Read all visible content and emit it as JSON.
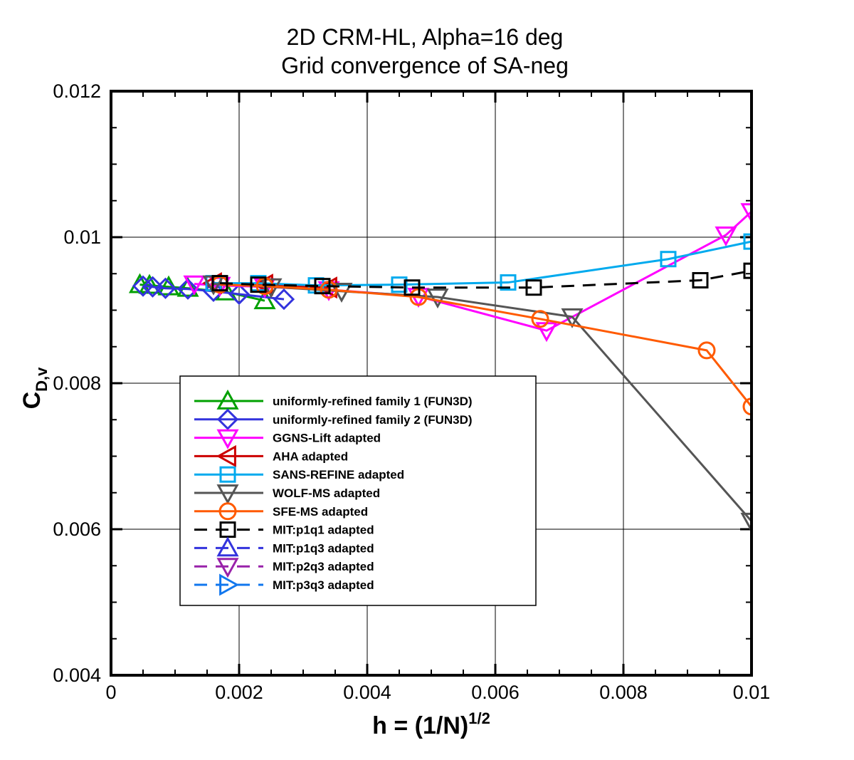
{
  "chart_data": {
    "type": "line",
    "title": [
      "2D CRM-HL, Alpha=16 deg",
      "Grid convergence of SA-neg"
    ],
    "xlabel": {
      "base": "h = (1/N)",
      "sup": "1/2"
    },
    "ylabel": {
      "base": "C",
      "sub": "D,v"
    },
    "xlim": [
      0,
      0.01
    ],
    "ylim": [
      0.004,
      0.012
    ],
    "xticks": [
      "0",
      "0.002",
      "0.004",
      "0.006",
      "0.008",
      "0.01"
    ],
    "yticks": [
      "0.004",
      "0.006",
      "0.008",
      "0.01",
      "0.012"
    ],
    "grid": true,
    "legend_position": "lower-left",
    "series": [
      {
        "name": "uniformly-refined family 1 (FUN3D)",
        "color": "#00a000",
        "marker": "triangle-up",
        "dash": false,
        "x": [
          0.00045,
          0.0006,
          0.0009,
          0.0012,
          0.0018,
          0.0024
        ],
        "y": [
          0.00935,
          0.00934,
          0.00932,
          0.0093,
          0.00925,
          0.00913
        ]
      },
      {
        "name": "uniformly-refined family 2 (FUN3D)",
        "color": "#3333dd",
        "marker": "diamond",
        "dash": false,
        "x": [
          0.0005,
          0.00065,
          0.00085,
          0.0012,
          0.0016,
          0.002,
          0.0027
        ],
        "y": [
          0.00933,
          0.00932,
          0.0093,
          0.00929,
          0.00926,
          0.00922,
          0.00915
        ]
      },
      {
        "name": "GGNS-Lift adapted",
        "color": "#ff00ff",
        "marker": "triangle-down",
        "dash": false,
        "x": [
          0.0013,
          0.0017,
          0.0024,
          0.0034,
          0.0048,
          0.0068,
          0.0096,
          0.01
        ],
        "y": [
          0.00936,
          0.00934,
          0.00932,
          0.00928,
          0.00919,
          0.00872,
          0.01003,
          0.01035
        ]
      },
      {
        "name": "AHA adapted",
        "color": "#cc0000",
        "marker": "triangle-left",
        "dash": false,
        "x": [
          0.0016,
          0.0024,
          0.0034
        ],
        "y": [
          0.00937,
          0.00935,
          0.00931
        ]
      },
      {
        "name": "SANS-REFINE adapted",
        "color": "#00aaee",
        "marker": "square",
        "dash": false,
        "x": [
          0.0016,
          0.0023,
          0.0032,
          0.0045,
          0.0062,
          0.0087,
          0.01
        ],
        "y": [
          0.00937,
          0.00937,
          0.00934,
          0.00935,
          0.00938,
          0.0097,
          0.00994
        ]
      },
      {
        "name": "WOLF-MS adapted",
        "color": "#555555",
        "marker": "triangle-down",
        "dash": false,
        "x": [
          0.0016,
          0.0025,
          0.0036,
          0.0051,
          0.0072,
          0.01
        ],
        "y": [
          0.00936,
          0.00932,
          0.00926,
          0.00918,
          0.00891,
          0.00611
        ]
      },
      {
        "name": "SFE-MS adapted",
        "color": "#ff5a00",
        "marker": "circle",
        "dash": false,
        "x": [
          0.0017,
          0.0024,
          0.0034,
          0.0048,
          0.0067,
          0.0093,
          0.01
        ],
        "y": [
          0.00935,
          0.00933,
          0.00928,
          0.00918,
          0.00888,
          0.00845,
          0.00768
        ]
      },
      {
        "name": "MIT:p1q1 adapted",
        "color": "#000000",
        "marker": "square",
        "dash": true,
        "x": [
          0.0017,
          0.0023,
          0.0033,
          0.0047,
          0.0066,
          0.0092,
          0.01
        ],
        "y": [
          0.00937,
          0.00935,
          0.00933,
          0.00931,
          0.00931,
          0.00941,
          0.00954
        ]
      },
      {
        "name": "MIT:p1q3 adapted",
        "color": "#3333dd",
        "marker": "triangle-up",
        "dash": true,
        "x": [],
        "y": []
      },
      {
        "name": "MIT:p2q3 adapted",
        "color": "#9922aa",
        "marker": "triangle-down",
        "dash": true,
        "x": [],
        "y": []
      },
      {
        "name": "MIT:p3q3 adapted",
        "color": "#1177ee",
        "marker": "triangle-right",
        "dash": true,
        "x": [],
        "y": []
      }
    ]
  }
}
